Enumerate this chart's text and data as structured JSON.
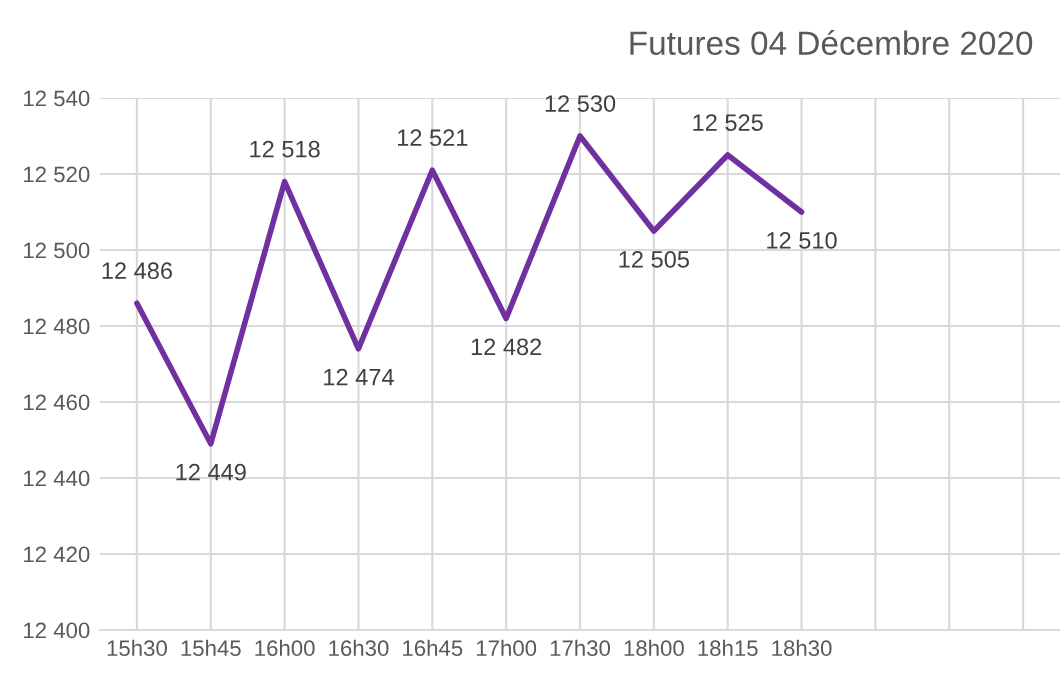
{
  "chart_data": {
    "type": "line",
    "title": "Futures 04 Décembre 2020",
    "categories": [
      "15h30",
      "15h45",
      "16h00",
      "16h30",
      "16h45",
      "17h00",
      "17h30",
      "18h00",
      "18h15",
      "18h30",
      null,
      null,
      null
    ],
    "series": [
      {
        "color": "#7030a0",
        "values": [
          12486,
          12449,
          12518,
          12474,
          12521,
          12482,
          12530,
          12505,
          12525,
          12510,
          null,
          null,
          null
        ],
        "value_labels": [
          "12 486",
          "12 449",
          "12 518",
          "12 474",
          "12 521",
          "12 482",
          "12 530",
          "12 505",
          "12 525",
          "12 510",
          null,
          null,
          null
        ]
      }
    ],
    "ylim": [
      12400,
      12540
    ],
    "yticks": [
      {
        "value": 12400,
        "label": "12 400"
      },
      {
        "value": 12420,
        "label": "12 420"
      },
      {
        "value": 12440,
        "label": "12 440"
      },
      {
        "value": 12460,
        "label": "12 460"
      },
      {
        "value": 12480,
        "label": "12 480"
      },
      {
        "value": 12500,
        "label": "12 500"
      },
      {
        "value": 12520,
        "label": "12 520"
      },
      {
        "value": 12540,
        "label": "12 540"
      }
    ],
    "grid": true,
    "marker": "none",
    "line_style": "solid"
  }
}
